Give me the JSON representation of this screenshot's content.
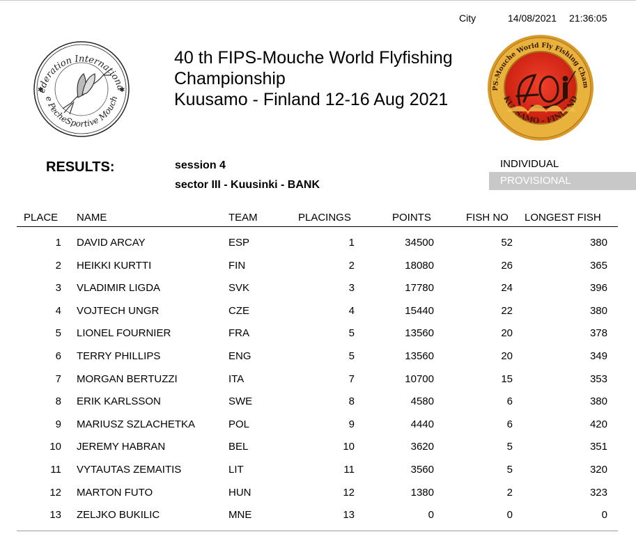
{
  "header": {
    "city_label": "City",
    "date": "14/08/2021",
    "time": "21:36:05",
    "title_line1": "40 th FIPS-Mouche World Flyfishing",
    "title_line2": "Championship",
    "title_line3": "Kuusamo - Finland 12-16 Aug 2021",
    "left_logo_text_top": "Federation Internationale",
    "left_logo_text_bottom": "de PecheSportive Mouche",
    "right_logo_text_top": "40 th FIPS-Mouche World Fly Fishing Championship",
    "right_logo_text_bottom": "KUUSAMO - FINLAND"
  },
  "info": {
    "results_label": "RESULTS:",
    "session": "session 4",
    "sector": "sector III - Kuusinki - BANK",
    "individual": "INDIVIDUAL",
    "provisional": "PROVISIONAL"
  },
  "table": {
    "columns": [
      "PLACE",
      "NAME",
      "TEAM",
      "PLACINGS",
      "POINTS",
      "FISH NO",
      "LONGEST FISH"
    ],
    "rows": [
      {
        "place": "1",
        "name": "DAVID ARCAY",
        "team": "ESP",
        "placings": "1",
        "points": "34500",
        "fish_no": "52",
        "longest": "380"
      },
      {
        "place": "2",
        "name": "HEIKKI KURTTI",
        "team": "FIN",
        "placings": "2",
        "points": "18080",
        "fish_no": "26",
        "longest": "365"
      },
      {
        "place": "3",
        "name": "VLADIMIR LIGDA",
        "team": "SVK",
        "placings": "3",
        "points": "17780",
        "fish_no": "24",
        "longest": "396"
      },
      {
        "place": "4",
        "name": "VOJTECH UNGR",
        "team": "CZE",
        "placings": "4",
        "points": "15440",
        "fish_no": "22",
        "longest": "380"
      },
      {
        "place": "5",
        "name": "LIONEL FOURNIER",
        "team": "FRA",
        "placings": "5",
        "points": "13560",
        "fish_no": "20",
        "longest": "378"
      },
      {
        "place": "6",
        "name": "TERRY PHILLIPS",
        "team": "ENG",
        "placings": "5",
        "points": "13560",
        "fish_no": "20",
        "longest": "349"
      },
      {
        "place": "7",
        "name": "MORGAN BERTUZZI",
        "team": "ITA",
        "placings": "7",
        "points": "10700",
        "fish_no": "15",
        "longest": "353"
      },
      {
        "place": "8",
        "name": "ERIK KARLSSON",
        "team": "SWE",
        "placings": "8",
        "points": "4580",
        "fish_no": "6",
        "longest": "380"
      },
      {
        "place": "9",
        "name": "MARIUSZ SZLACHETKA",
        "team": "POL",
        "placings": "9",
        "points": "4440",
        "fish_no": "6",
        "longest": "420"
      },
      {
        "place": "10",
        "name": "JEREMY HABRAN",
        "team": "BEL",
        "placings": "10",
        "points": "3620",
        "fish_no": "5",
        "longest": "351"
      },
      {
        "place": "11",
        "name": "VYTAUTAS ZEMAITIS",
        "team": "LIT",
        "placings": "11",
        "points": "3560",
        "fish_no": "5",
        "longest": "320"
      },
      {
        "place": "12",
        "name": "MARTON FUTO",
        "team": "HUN",
        "placings": "12",
        "points": "1380",
        "fish_no": "2",
        "longest": "323"
      },
      {
        "place": "13",
        "name": "ZELJKO BUKILIC",
        "team": "MNE",
        "placings": "13",
        "points": "0",
        "fish_no": "0",
        "longest": "0"
      }
    ]
  }
}
